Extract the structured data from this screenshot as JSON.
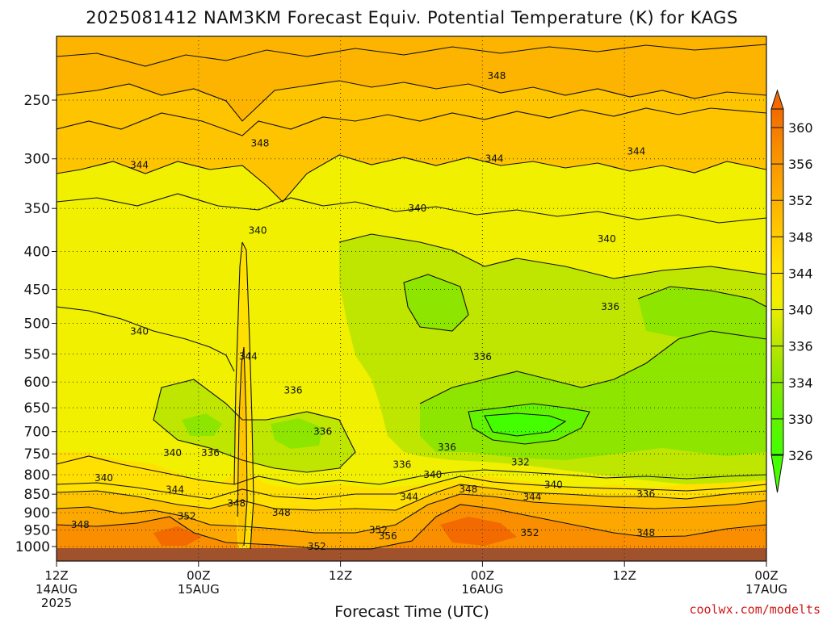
{
  "chart_data": {
    "type": "heatmap",
    "title": "2025081412 NAM3KM Forecast Equiv. Potential Temperature (K) for KAGS",
    "xlabel": "Forecast Time (UTC)",
    "ylabel": "",
    "y_scale": "log",
    "y_reversed": true,
    "y_ticks": [
      250,
      300,
      350,
      400,
      450,
      500,
      550,
      600,
      650,
      700,
      750,
      800,
      850,
      900,
      950,
      1000
    ],
    "x_ticks": [
      {
        "hour": 0,
        "lines": [
          "12Z",
          "14AUG",
          "2025"
        ]
      },
      {
        "hour": 12,
        "lines": [
          "00Z",
          "15AUG"
        ]
      },
      {
        "hour": 24,
        "lines": [
          "12Z"
        ]
      },
      {
        "hour": 36,
        "lines": [
          "00Z",
          "16AUG"
        ]
      },
      {
        "hour": 48,
        "lines": [
          "12Z"
        ]
      },
      {
        "hour": 60,
        "lines": [
          "00Z",
          "17AUG"
        ]
      }
    ],
    "x_range_hours": [
      0,
      60
    ],
    "grid": true,
    "colorbar": {
      "ticks": [
        326,
        330,
        334,
        336,
        340,
        344,
        348,
        352,
        356,
        360
      ],
      "colors": [
        "#44ff00",
        "#63f200",
        "#8ee600",
        "#bfe600",
        "#f0f000",
        "#ffe000",
        "#ffc400",
        "#fca800",
        "#f88e00",
        "#f26a00"
      ]
    },
    "contour_labels": [
      {
        "text": "348",
        "h": 37.2,
        "p": 232
      },
      {
        "text": "348",
        "h": 17.2,
        "p": 286
      },
      {
        "text": "344",
        "h": 7.0,
        "p": 306
      },
      {
        "text": "344",
        "h": 37.0,
        "p": 300
      },
      {
        "text": "344",
        "h": 49.0,
        "p": 293
      },
      {
        "text": "340",
        "h": 30.5,
        "p": 350
      },
      {
        "text": "340",
        "h": 46.5,
        "p": 385
      },
      {
        "text": "340",
        "h": 17.0,
        "p": 375
      },
      {
        "text": "340",
        "h": 7.0,
        "p": 513
      },
      {
        "text": "336",
        "h": 46.8,
        "p": 475
      },
      {
        "text": "336",
        "h": 36.0,
        "p": 555
      },
      {
        "text": "336",
        "h": 20.0,
        "p": 616
      },
      {
        "text": "336",
        "h": 22.5,
        "p": 700
      },
      {
        "text": "344",
        "h": 16.2,
        "p": 554
      },
      {
        "text": "340",
        "h": 9.8,
        "p": 748
      },
      {
        "text": "336",
        "h": 13.0,
        "p": 748
      },
      {
        "text": "336",
        "h": 33.0,
        "p": 735
      },
      {
        "text": "336",
        "h": 29.2,
        "p": 775
      },
      {
        "text": "332",
        "h": 39.2,
        "p": 770
      },
      {
        "text": "340",
        "h": 4.0,
        "p": 808
      },
      {
        "text": "340",
        "h": 31.8,
        "p": 800
      },
      {
        "text": "344",
        "h": 10.0,
        "p": 838
      },
      {
        "text": "348",
        "h": 34.8,
        "p": 837
      },
      {
        "text": "344",
        "h": 29.8,
        "p": 857
      },
      {
        "text": "344",
        "h": 40.2,
        "p": 857
      },
      {
        "text": "340",
        "h": 42.0,
        "p": 825
      },
      {
        "text": "336",
        "h": 49.8,
        "p": 850
      },
      {
        "text": "348",
        "h": 15.2,
        "p": 875
      },
      {
        "text": "348",
        "h": 19.0,
        "p": 900
      },
      {
        "text": "352",
        "h": 11.0,
        "p": 910
      },
      {
        "text": "348",
        "h": 2.0,
        "p": 935
      },
      {
        "text": "352",
        "h": 27.2,
        "p": 950
      },
      {
        "text": "356",
        "h": 28.0,
        "p": 968
      },
      {
        "text": "352",
        "h": 40.0,
        "p": 958
      },
      {
        "text": "348",
        "h": 49.8,
        "p": 958
      },
      {
        "text": "352",
        "h": 22.0,
        "p": 1000
      }
    ]
  },
  "credit": "coolwx.com/modelts"
}
